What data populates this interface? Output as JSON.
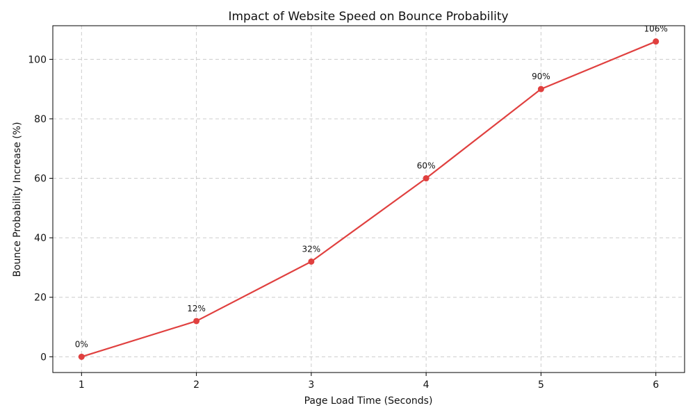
{
  "chart_data": {
    "type": "line",
    "title": "Impact of Website Speed on Bounce Probability",
    "xlabel": "Page Load Time (Seconds)",
    "ylabel": "Bounce Probability Increase (%)",
    "x": [
      1,
      2,
      3,
      4,
      5,
      6
    ],
    "xlim": [
      0.75,
      6.25
    ],
    "ylim": [
      -5.3,
      111.3
    ],
    "xticks": [
      1,
      2,
      3,
      4,
      5,
      6
    ],
    "yticks": [
      0,
      20,
      40,
      60,
      80,
      100
    ],
    "grid": true,
    "series": [
      {
        "values": [
          0,
          12,
          32,
          60,
          90,
          106
        ],
        "labels": [
          "0%",
          "12%",
          "32%",
          "60%",
          "90%",
          "106%"
        ],
        "color": "#e0403f",
        "marker": "circle"
      }
    ]
  }
}
